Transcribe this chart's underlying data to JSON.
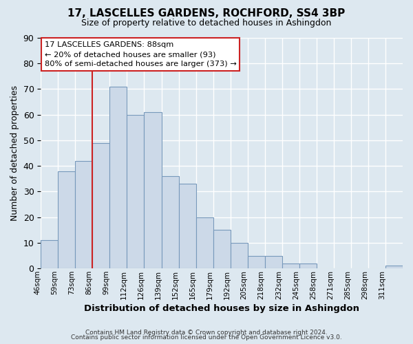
{
  "title": "17, LASCELLES GARDENS, ROCHFORD, SS4 3BP",
  "subtitle": "Size of property relative to detached houses in Ashingdon",
  "xlabel": "Distribution of detached houses by size in Ashingdon",
  "ylabel": "Number of detached properties",
  "bin_labels": [
    "46sqm",
    "59sqm",
    "73sqm",
    "86sqm",
    "99sqm",
    "112sqm",
    "126sqm",
    "139sqm",
    "152sqm",
    "165sqm",
    "179sqm",
    "192sqm",
    "205sqm",
    "218sqm",
    "232sqm",
    "245sqm",
    "258sqm",
    "271sqm",
    "285sqm",
    "298sqm",
    "311sqm"
  ],
  "bar_heights": [
    11,
    38,
    42,
    49,
    71,
    60,
    61,
    36,
    33,
    20,
    15,
    10,
    5,
    5,
    2,
    2,
    0,
    0,
    0,
    0,
    1
  ],
  "bar_color": "#ccd9e8",
  "bar_edge_color": "#7799bb",
  "vline_x": 3,
  "ylim": [
    0,
    90
  ],
  "yticks": [
    0,
    10,
    20,
    30,
    40,
    50,
    60,
    70,
    80,
    90
  ],
  "annotation_box_text": "17 LASCELLES GARDENS: 88sqm\n← 20% of detached houses are smaller (93)\n80% of semi-detached houses are larger (373) →",
  "annotation_box_color": "#ffffff",
  "annotation_box_edge_color": "#cc2222",
  "vline_color": "#cc2222",
  "footer_line1": "Contains HM Land Registry data © Crown copyright and database right 2024.",
  "footer_line2": "Contains public sector information licensed under the Open Government Licence v3.0.",
  "bg_color": "#dde8f0",
  "plot_bg_color": "#dde8f0",
  "grid_color": "#ffffff"
}
